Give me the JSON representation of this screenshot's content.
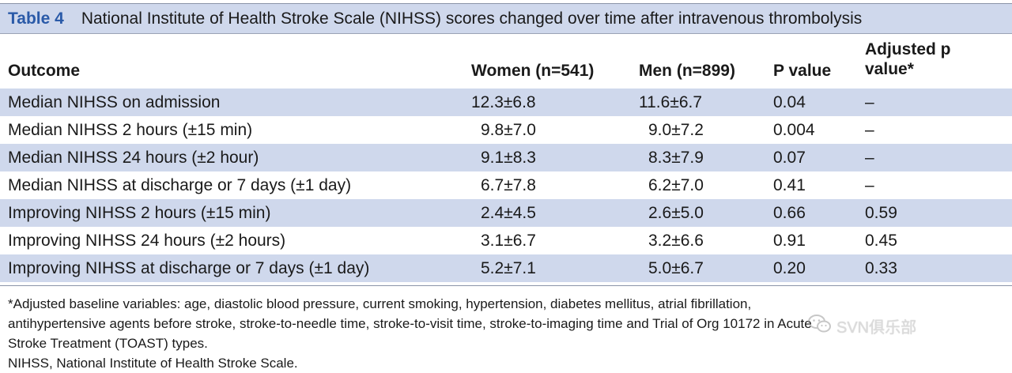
{
  "table": {
    "label": "Table 4",
    "title": "National Institute of Health Stroke Scale (NIHSS) scores changed over time after intravenous thrombolysis",
    "headers": {
      "outcome": "Outcome",
      "women": "Women (n=541)",
      "men": "Men (n=899)",
      "p_value": "P value",
      "adjusted_p_line1": "Adjusted p",
      "adjusted_p_line2": "value*"
    },
    "rows": [
      {
        "outcome": "Median NIHSS on admission",
        "women": "12.3±6.8",
        "men": "11.6±6.7",
        "p": "0.04",
        "adj": "–"
      },
      {
        "outcome": "Median NIHSS 2 hours (±15 min)",
        "women": "9.8±7.0",
        "men": "9.0±7.2",
        "p": "0.004",
        "adj": "–"
      },
      {
        "outcome": "Median NIHSS 24 hours (±2 hour)",
        "women": "9.1±8.3",
        "men": "8.3±7.9",
        "p": "0.07",
        "adj": "–"
      },
      {
        "outcome": "Median NIHSS at discharge or 7 days (±1 day)",
        "women": "6.7±7.8",
        "men": "6.2±7.0",
        "p": "0.41",
        "adj": "–"
      },
      {
        "outcome": "Improving NIHSS 2 hours (±15 min)",
        "women": "2.4±4.5",
        "men": "2.6±5.0",
        "p": "0.66",
        "adj": "0.59"
      },
      {
        "outcome": "Improving NIHSS 24 hours (±2 hours)",
        "women": "3.1±6.7",
        "men": "3.2±6.6",
        "p": "0.91",
        "adj": "0.45"
      },
      {
        "outcome": "Improving NIHSS at discharge or 7 days (±1 day)",
        "women": "5.2±7.1",
        "men": "5.0±6.7",
        "p": "0.20",
        "adj": "0.33"
      }
    ]
  },
  "footnotes": {
    "line1": "*Adjusted baseline variables: age, diastolic blood pressure, current smoking, hypertension, diabetes mellitus, atrial fibrillation,",
    "line2": "antihypertensive agents before stroke, stroke-to-needle time, stroke-to-visit time, stroke-to-imaging time and Trial of Org 10172 in Acute",
    "line3": "Stroke Treatment (TOAST) types.",
    "line4": "NIHSS, National Institute of Health Stroke Scale."
  },
  "watermark": {
    "text": "SVN俱乐部",
    "icon": "wechat-icon"
  },
  "colors": {
    "title_bar": "#cfd8ec",
    "label_blue": "#2a5aa8",
    "shaded_row": "#cfd8ec"
  }
}
